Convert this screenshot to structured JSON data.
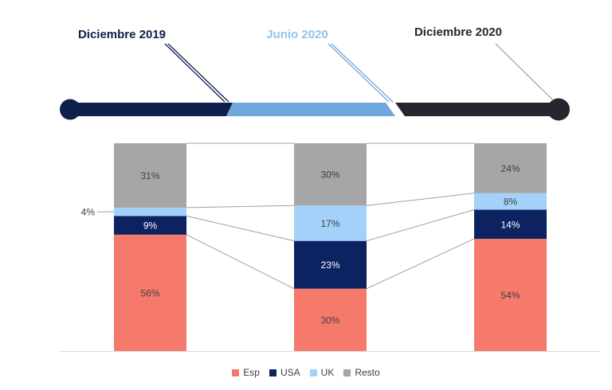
{
  "timeline": {
    "labels": [
      {
        "text": "Diciembre 2019",
        "color": "#0d1f4a"
      },
      {
        "text": "Junio 2020",
        "color": "#8fc4f0"
      },
      {
        "text": "Diciembre 2020",
        "color": "#26272e"
      }
    ],
    "segment_colors": [
      "#0d1f4a",
      "#6fa8dc",
      "#26272e"
    ]
  },
  "chart_data": {
    "type": "bar",
    "stacked": true,
    "percent": true,
    "categories": [
      "Diciembre 2019",
      "Junio 2020",
      "Diciembre 2020"
    ],
    "series": [
      {
        "name": "Esp",
        "color": "#f67a6c",
        "values": [
          56,
          30,
          54
        ],
        "labels": [
          "56%",
          "30%",
          "54%"
        ]
      },
      {
        "name": "USA",
        "color": "#0d2260",
        "values": [
          9,
          23,
          14
        ],
        "labels": [
          "9%",
          "23%",
          "14%"
        ]
      },
      {
        "name": "UK",
        "color": "#a3d1fa",
        "values": [
          4,
          17,
          8
        ],
        "labels": [
          "4%",
          "17%",
          "8%"
        ]
      },
      {
        "name": "Resto",
        "color": "#a6a6a6",
        "values": [
          31,
          30,
          24
        ],
        "labels": [
          "31%",
          "30%",
          "24%"
        ]
      }
    ],
    "ylim": [
      0,
      100
    ],
    "legend_position": "bottom",
    "series_lines": true
  }
}
